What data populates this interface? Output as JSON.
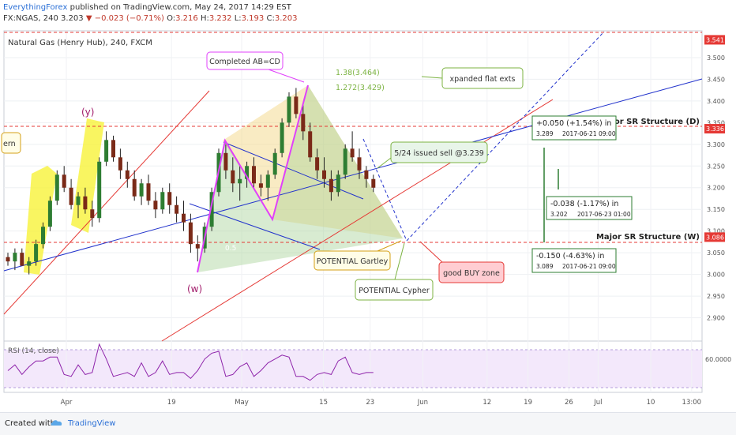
{
  "header": {
    "author": "EverythingForex",
    "published": " published on TradingView.com, May 24, 2017 14:29 EST",
    "symbol": "FX:NGAS, 240",
    "last": "3.203",
    "change": "▼ −0.023 (−0.71%)",
    "o_label": "O:",
    "o": "3.216",
    "h_label": "H:",
    "h": "3.232",
    "l_label": "L:",
    "l": "3.193",
    "c_label": "C:",
    "c": "3.203"
  },
  "footer": {
    "created": "Created with",
    "brand": "TradingView"
  },
  "colors": {
    "up": "#2e7d32",
    "down": "#7a2a18",
    "pattern": "#e040fb",
    "rsi": "#9c27b0",
    "support": "#d32f2f",
    "trend": "#2233cc"
  },
  "chart_data": {
    "type": "candlestick",
    "title": "Natural Gas (Henry Hub), 240, FXCM",
    "x_ticks": [
      {
        "label": "Apr",
        "t": 0
      },
      {
        "label": "19",
        "t": 18
      },
      {
        "label": "May",
        "t": 30
      },
      {
        "label": "15",
        "t": 44
      },
      {
        "label": "23",
        "t": 52
      },
      {
        "label": "Jun",
        "t": 61
      },
      {
        "label": "12",
        "t": 72
      },
      {
        "label": "19",
        "t": 79
      },
      {
        "label": "26",
        "t": 86
      },
      {
        "label": "Jul",
        "t": 91
      },
      {
        "label": "10",
        "t": 100
      },
      {
        "label": "13:00",
        "t": 107
      }
    ],
    "price_ticks": [
      "3.500",
      "3.450",
      "3.400",
      "3.350",
      "3.300",
      "3.250",
      "3.200",
      "3.150",
      "3.100",
      "3.050",
      "3.000",
      "2.950",
      "2.900"
    ],
    "price_range": [
      2.85,
      3.56
    ],
    "price_labels": [
      {
        "text": "3.541",
        "value": 3.541
      },
      {
        "text": "3.336",
        "value": 3.336
      },
      {
        "text": "3.086",
        "value": 3.086
      }
    ],
    "rsi": {
      "label": "RSI (14, close)",
      "tick": "60.0000"
    },
    "ohlc": [
      [
        3.04,
        3.05,
        3.02,
        3.03
      ],
      [
        3.03,
        3.06,
        3.01,
        3.05
      ],
      [
        3.05,
        3.06,
        3.02,
        3.02
      ],
      [
        3.02,
        3.04,
        3.0,
        3.03
      ],
      [
        3.03,
        3.08,
        3.02,
        3.07
      ],
      [
        3.07,
        3.12,
        3.06,
        3.11
      ],
      [
        3.11,
        3.18,
        3.1,
        3.17
      ],
      [
        3.17,
        3.24,
        3.16,
        3.23
      ],
      [
        3.23,
        3.25,
        3.19,
        3.2
      ],
      [
        3.2,
        3.22,
        3.15,
        3.16
      ],
      [
        3.16,
        3.19,
        3.13,
        3.18
      ],
      [
        3.18,
        3.2,
        3.14,
        3.15
      ],
      [
        3.15,
        3.17,
        3.11,
        3.13
      ],
      [
        3.13,
        3.27,
        3.12,
        3.26
      ],
      [
        3.26,
        3.33,
        3.25,
        3.31
      ],
      [
        3.31,
        3.32,
        3.26,
        3.27
      ],
      [
        3.27,
        3.29,
        3.22,
        3.24
      ],
      [
        3.24,
        3.26,
        3.2,
        3.22
      ],
      [
        3.22,
        3.24,
        3.17,
        3.18
      ],
      [
        3.18,
        3.22,
        3.16,
        3.21
      ],
      [
        3.21,
        3.23,
        3.16,
        3.17
      ],
      [
        3.17,
        3.19,
        3.13,
        3.15
      ],
      [
        3.15,
        3.2,
        3.14,
        3.19
      ],
      [
        3.19,
        3.21,
        3.14,
        3.16
      ],
      [
        3.16,
        3.18,
        3.12,
        3.14
      ],
      [
        3.14,
        3.17,
        3.1,
        3.12
      ],
      [
        3.12,
        3.14,
        3.05,
        3.07
      ],
      [
        3.07,
        3.09,
        3.03,
        3.06
      ],
      [
        3.06,
        3.12,
        3.05,
        3.11
      ],
      [
        3.11,
        3.2,
        3.1,
        3.19
      ],
      [
        3.19,
        3.29,
        3.18,
        3.28
      ],
      [
        3.28,
        3.3,
        3.22,
        3.24
      ],
      [
        3.24,
        3.27,
        3.19,
        3.21
      ],
      [
        3.21,
        3.25,
        3.17,
        3.22
      ],
      [
        3.22,
        3.26,
        3.2,
        3.25
      ],
      [
        3.25,
        3.27,
        3.2,
        3.21
      ],
      [
        3.21,
        3.23,
        3.18,
        3.2
      ],
      [
        3.2,
        3.24,
        3.17,
        3.23
      ],
      [
        3.23,
        3.29,
        3.22,
        3.28
      ],
      [
        3.28,
        3.36,
        3.27,
        3.35
      ],
      [
        3.35,
        3.42,
        3.34,
        3.41
      ],
      [
        3.41,
        3.43,
        3.36,
        3.37
      ],
      [
        3.37,
        3.39,
        3.31,
        3.33
      ],
      [
        3.33,
        3.35,
        3.26,
        3.27
      ],
      [
        3.27,
        3.29,
        3.22,
        3.24
      ],
      [
        3.24,
        3.27,
        3.2,
        3.22
      ],
      [
        3.22,
        3.24,
        3.17,
        3.19
      ],
      [
        3.19,
        3.24,
        3.18,
        3.23
      ],
      [
        3.23,
        3.3,
        3.22,
        3.29
      ],
      [
        3.29,
        3.33,
        3.26,
        3.27
      ],
      [
        3.27,
        3.29,
        3.22,
        3.24
      ],
      [
        3.24,
        3.25,
        3.2,
        3.22
      ],
      [
        3.22,
        3.23,
        3.19,
        3.2
      ]
    ],
    "annotations": [
      {
        "id": "completed-abcd",
        "text": "Completed AB=CD"
      },
      {
        "id": "fib-138",
        "text": "1.38(3.464)"
      },
      {
        "id": "fib-1272",
        "text": "1.272(3.429)"
      },
      {
        "id": "expanded-flat",
        "text": "xpanded flat exts"
      },
      {
        "id": "issued-sell",
        "text": "5/24 issued sell @3.239"
      },
      {
        "id": "potential-gartley",
        "text": "POTENTIAL Gartley"
      },
      {
        "id": "potential-cypher",
        "text": "POTENTIAL Cypher"
      },
      {
        "id": "good-buy-zone",
        "text": "good BUY zone"
      },
      {
        "id": "wave-y",
        "text": "(y)"
      },
      {
        "id": "wave-w",
        "text": "(w)"
      },
      {
        "id": "pattern-left",
        "text": "ern"
      },
      {
        "id": "major-sr-d",
        "text": "Major SR Structure (D)"
      },
      {
        "id": "major-sr-w",
        "text": "Major SR Structure (W)"
      },
      {
        "id": "fib-05",
        "text": "0.5"
      }
    ],
    "measure_boxes": [
      {
        "id": "m1",
        "line1": "+0.050 (+1.54%) in",
        "price": "3.289",
        "date": "2017-06-21  09:00"
      },
      {
        "id": "m2",
        "line1": "-0.038 (-1.17%) in",
        "price": "3.202",
        "date": "2017-06-23  01:00"
      },
      {
        "id": "m3",
        "line1": "-0.150 (-4.63%) in",
        "price": "3.089",
        "date": "2017-06-21  09:00"
      }
    ]
  }
}
